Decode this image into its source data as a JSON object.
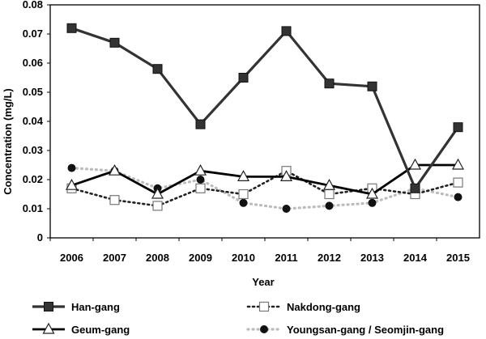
{
  "chart_data": {
    "type": "line",
    "title": "",
    "xlabel": "Year",
    "ylabel": "Concentration (mg/L)",
    "x": [
      "2006",
      "2007",
      "2008",
      "2009",
      "2010",
      "2011",
      "2012",
      "2013",
      "2014",
      "2015"
    ],
    "ylim": [
      0,
      0.08
    ],
    "yticks": [
      "0",
      "0.01",
      "0.02",
      "0.03",
      "0.04",
      "0.05",
      "0.06",
      "0.07",
      "0.08"
    ],
    "grid": false,
    "legend_position": "bottom",
    "series": [
      {
        "name": "Han-gang",
        "style": "solid",
        "marker": "filled-square",
        "color": "#333333",
        "values": [
          0.072,
          0.067,
          0.058,
          0.039,
          0.055,
          0.071,
          0.053,
          0.052,
          0.017,
          0.038
        ]
      },
      {
        "name": "Nakdong-gang",
        "style": "dotted",
        "marker": "hollow-square",
        "color": "#222222",
        "values": [
          0.017,
          0.013,
          0.011,
          0.017,
          0.015,
          0.023,
          0.015,
          0.017,
          0.015,
          0.019
        ]
      },
      {
        "name": "Geum-gang",
        "style": "solid",
        "marker": "hollow-triangle",
        "color": "#000000",
        "values": [
          0.018,
          0.023,
          0.015,
          0.023,
          0.021,
          0.021,
          0.018,
          0.015,
          0.025,
          0.025
        ]
      },
      {
        "name": "Youngsan-gang / Seomjin-gang",
        "style": "dotted-gray",
        "marker": "filled-circle",
        "color": "#222222",
        "values": [
          0.024,
          0.023,
          0.017,
          0.02,
          0.012,
          0.01,
          0.011,
          0.012,
          0.017,
          0.014
        ]
      }
    ]
  }
}
